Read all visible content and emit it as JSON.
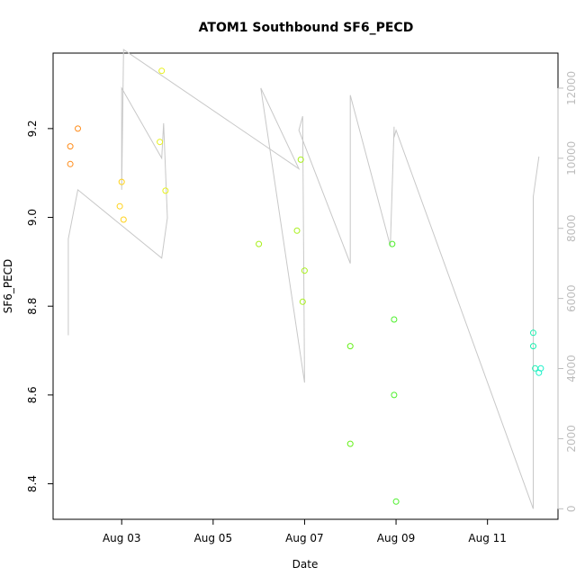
{
  "chart_data": {
    "type": "scatter",
    "title": "ATOM1 Southbound SF6_PECD",
    "xlabel": "Date",
    "ylabel": "SF6_PECD",
    "x_ticks": [
      {
        "label": "Aug 03",
        "day": 3
      },
      {
        "label": "Aug 05",
        "day": 5
      },
      {
        "label": "Aug 07",
        "day": 7
      },
      {
        "label": "Aug 09",
        "day": 9
      },
      {
        "label": "Aug 11",
        "day": 11
      }
    ],
    "xlim": [
      "2016-08-01 12:00",
      "2016-08-12 13:00"
    ],
    "ylim": [
      8.32,
      9.37
    ],
    "y_ticks": [
      "8.4",
      "8.6",
      "8.8",
      "9.0",
      "9.2"
    ],
    "grid": false,
    "series": [
      {
        "color_scale": [
          "#ff8c1a",
          "#ffd21a",
          "#c8f01a",
          "#7cf01a",
          "#33f07a",
          "#1af0c0"
        ],
        "points": [
          {
            "x": "Aug 01 21:00",
            "y": 9.12,
            "color": "#ff8c1a"
          },
          {
            "x": "Aug 01 21:00",
            "y": 9.16,
            "color": "#ff8c1a"
          },
          {
            "x": "Aug 02 01:00",
            "y": 9.2,
            "color": "#ff8c1a"
          },
          {
            "x": "Aug 02 23:00",
            "y": 9.025,
            "color": "#ffd21a"
          },
          {
            "x": "Aug 03 00:00",
            "y": 9.08,
            "color": "#ffd21a"
          },
          {
            "x": "Aug 03 01:00",
            "y": 8.995,
            "color": "#ffd21a"
          },
          {
            "x": "Aug 03 20:00",
            "y": 9.17,
            "color": "#e6f01a"
          },
          {
            "x": "Aug 03 21:00",
            "y": 9.33,
            "color": "#e6f01a"
          },
          {
            "x": "Aug 03 23:00",
            "y": 9.06,
            "color": "#e6f01a"
          },
          {
            "x": "Aug 06 00:00",
            "y": 8.94,
            "color": "#a8f01a"
          },
          {
            "x": "Aug 06 20:00",
            "y": 8.97,
            "color": "#a8f01a"
          },
          {
            "x": "Aug 06 22:00",
            "y": 9.13,
            "color": "#a8f01a"
          },
          {
            "x": "Aug 06 23:00",
            "y": 8.81,
            "color": "#a8f01a"
          },
          {
            "x": "Aug 07 00:00",
            "y": 8.88,
            "color": "#a8f01a"
          },
          {
            "x": "Aug 08 00:00",
            "y": 8.71,
            "color": "#66f01a"
          },
          {
            "x": "Aug 08 00:00",
            "y": 8.49,
            "color": "#66f01a"
          },
          {
            "x": "Aug 08 22:00",
            "y": 8.94,
            "color": "#4cf02a"
          },
          {
            "x": "Aug 08 23:00",
            "y": 8.77,
            "color": "#4cf02a"
          },
          {
            "x": "Aug 08 23:00",
            "y": 8.6,
            "color": "#4cf02a"
          },
          {
            "x": "Aug 09 00:00",
            "y": 8.36,
            "color": "#4cf02a"
          },
          {
            "x": "Aug 12 00:00",
            "y": 8.74,
            "color": "#1af0b0"
          },
          {
            "x": "Aug 12 00:00",
            "y": 8.71,
            "color": "#1af0b0"
          },
          {
            "x": "Aug 12 01:00",
            "y": 8.66,
            "color": "#1af0b0"
          },
          {
            "x": "Aug 12 03:00",
            "y": 8.65,
            "color": "#1af0c8"
          },
          {
            "x": "Aug 12 04:00",
            "y": 8.66,
            "color": "#1af0c8"
          }
        ]
      },
      {
        "axis": "right",
        "color": "#c8c8c8",
        "ylim": [
          -300,
          13000
        ],
        "y_ticks": [
          "0",
          "2000",
          "4000",
          "6000",
          "8000",
          "10000",
          "12000"
        ],
        "line": [
          {
            "x": "Aug 01 20:00",
            "y": 4950
          },
          {
            "x": "Aug 01 20:00",
            "y": 7700
          },
          {
            "x": "Aug 02 01:00",
            "y": 9100
          },
          {
            "x": "Aug 03 21:00",
            "y": 7150
          },
          {
            "x": "Aug 04 00:00",
            "y": 8300
          },
          {
            "x": "Aug 03 22:00",
            "y": 11000
          },
          {
            "x": "Aug 03 21:00",
            "y": 10000
          },
          {
            "x": "Aug 03 00:00",
            "y": 12000
          },
          {
            "x": "Aug 03 00:00",
            "y": 9100
          },
          {
            "x": "Aug 03 01:00",
            "y": 13100
          },
          {
            "x": "Aug 06 21:00",
            "y": 9700
          },
          {
            "x": "Aug 06 01:00",
            "y": 12000
          },
          {
            "x": "Aug 07 00:00",
            "y": 3600
          },
          {
            "x": "Aug 06 23:00",
            "y": 11200
          },
          {
            "x": "Aug 06 21:00",
            "y": 10800
          },
          {
            "x": "Aug 08 00:00",
            "y": 7000
          },
          {
            "x": "Aug 08 00:00",
            "y": 11800
          },
          {
            "x": "Aug 08 21:00",
            "y": 7500
          },
          {
            "x": "Aug 08 23:00",
            "y": 10900
          },
          {
            "x": "Aug 08 23:00",
            "y": 10600
          },
          {
            "x": "Aug 09 00:00",
            "y": 10800
          },
          {
            "x": "Aug 12 00:00",
            "y": 0
          },
          {
            "x": "Aug 12 00:00",
            "y": 8900
          },
          {
            "x": "Aug 12 03:00",
            "y": 10050
          }
        ]
      }
    ]
  }
}
